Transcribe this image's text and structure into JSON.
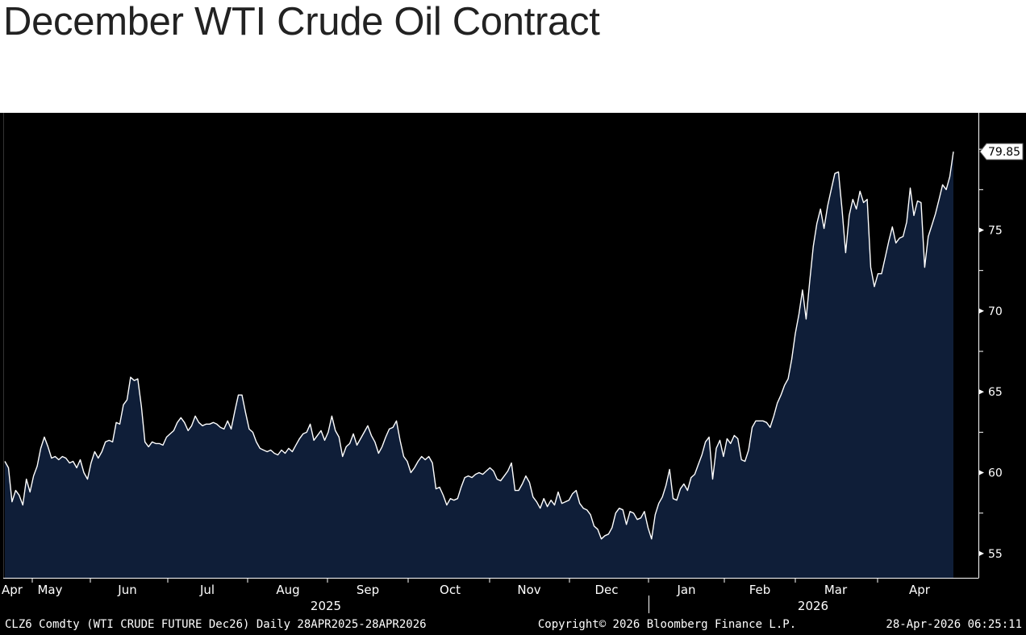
{
  "title": "December WTI Crude Oil Contract",
  "chart_data": {
    "type": "area",
    "ylim": [
      53.5,
      82.25
    ],
    "y_ticks": [
      55,
      60,
      65,
      70,
      75
    ],
    "last_value_label": "79.85",
    "month_labels": [
      "Apr",
      "May",
      "Jun",
      "Jul",
      "Aug",
      "Sep",
      "Oct",
      "Nov",
      "Dec",
      "Jan",
      "Feb",
      "Mar",
      "Apr"
    ],
    "year_labels": [
      "2025",
      "2026"
    ],
    "footer_left": "CLZ6 Comdty (WTI CRUDE FUTURE  Dec26) Daily 28APR2025-28APR2026",
    "footer_center": "Copyright© 2026 Bloomberg Finance L.P.",
    "footer_right": "28-Apr-2026 06:25:11",
    "colors": {
      "background": "#000000",
      "fill": "#0f1e38",
      "line": "#ffffff",
      "text": "#ffffff"
    },
    "values": [
      60.7,
      60.3,
      58.2,
      58.9,
      58.6,
      58.0,
      59.6,
      58.8,
      59.8,
      60.4,
      61.5,
      62.2,
      61.6,
      60.9,
      61.0,
      60.8,
      61.0,
      60.9,
      60.6,
      60.7,
      60.3,
      60.8,
      60.0,
      59.6,
      60.6,
      61.3,
      60.9,
      61.3,
      61.9,
      62.0,
      61.9,
      63.1,
      63.0,
      64.2,
      64.5,
      65.9,
      65.7,
      65.8,
      64.1,
      61.9,
      61.6,
      61.9,
      61.8,
      61.8,
      61.7,
      62.2,
      62.4,
      62.6,
      63.1,
      63.4,
      63.1,
      62.6,
      62.9,
      63.5,
      63.1,
      62.9,
      63.0,
      63.0,
      63.1,
      63.0,
      62.8,
      62.7,
      63.2,
      62.7,
      63.8,
      64.8,
      64.8,
      63.7,
      62.7,
      62.5,
      61.9,
      61.5,
      61.4,
      61.3,
      61.4,
      61.2,
      61.1,
      61.4,
      61.2,
      61.5,
      61.3,
      61.7,
      62.1,
      62.4,
      62.5,
      63.0,
      62.0,
      62.3,
      62.6,
      62.0,
      62.5,
      63.5,
      62.6,
      62.2,
      61.0,
      61.6,
      61.8,
      62.4,
      61.7,
      62.1,
      62.5,
      62.9,
      62.3,
      61.9,
      61.2,
      61.6,
      62.2,
      62.7,
      62.8,
      63.2,
      62.0,
      61.0,
      60.7,
      60.0,
      60.3,
      60.7,
      61.0,
      60.8,
      61.0,
      60.6,
      59.0,
      59.1,
      58.6,
      58.0,
      58.4,
      58.3,
      58.4,
      59.1,
      59.7,
      59.8,
      59.7,
      59.9,
      60.0,
      59.9,
      60.1,
      60.3,
      60.1,
      59.6,
      59.5,
      59.8,
      60.1,
      60.6,
      58.9,
      58.9,
      59.3,
      59.8,
      59.4,
      58.5,
      58.2,
      57.8,
      58.4,
      57.9,
      58.3,
      58.0,
      58.8,
      58.1,
      58.2,
      58.3,
      58.7,
      58.9,
      58.1,
      57.8,
      57.7,
      57.4,
      56.7,
      56.5,
      55.9,
      56.1,
      56.2,
      56.6,
      57.5,
      57.8,
      57.7,
      56.8,
      57.6,
      57.5,
      57.1,
      57.2,
      57.6,
      56.6,
      55.9,
      57.4,
      58.1,
      58.5,
      59.2,
      60.2,
      58.4,
      58.3,
      59.0,
      59.3,
      58.9,
      59.7,
      59.9,
      60.5,
      61.1,
      61.9,
      62.2,
      59.6,
      61.5,
      62.0,
      61.0,
      62.1,
      61.8,
      62.3,
      62.1,
      60.8,
      60.7,
      61.4,
      62.8,
      63.2,
      63.2,
      63.2,
      63.1,
      62.8,
      63.5,
      64.3,
      64.8,
      65.4,
      65.8,
      67.0,
      68.6,
      69.8,
      71.3,
      69.5,
      71.8,
      74.0,
      75.4,
      76.3,
      75.1,
      76.5,
      77.5,
      78.5,
      78.6,
      76.3,
      73.6,
      75.9,
      76.9,
      76.3,
      77.4,
      76.7,
      76.9,
      72.7,
      71.5,
      72.3,
      72.3,
      73.3,
      74.3,
      75.2,
      74.2,
      74.5,
      74.6,
      75.5,
      77.6,
      75.9,
      76.8,
      76.7,
      72.7,
      74.6,
      75.3,
      76.0,
      76.9,
      77.8,
      77.5,
      78.3,
      79.85
    ]
  }
}
